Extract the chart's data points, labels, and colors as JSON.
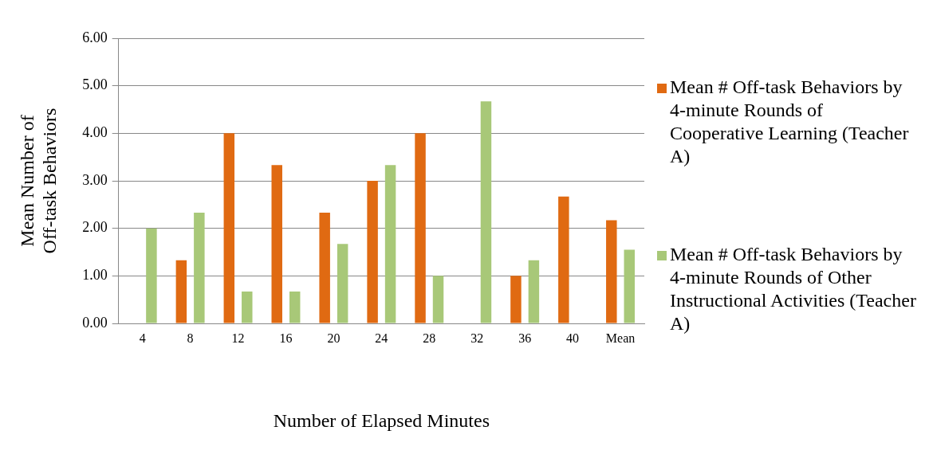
{
  "chart_data": {
    "type": "bar",
    "xlabel": "Number of Elapsed Minutes",
    "ylabel": "Mean Number of Off-task Behaviors",
    "categories": [
      "4",
      "8",
      "12",
      "16",
      "20",
      "24",
      "28",
      "32",
      "36",
      "40",
      "Mean"
    ],
    "series": [
      {
        "name": "Mean # Off-task Behaviors by 4-minute Rounds of Cooperative Learning (Teacher A)",
        "color": "#e06a12",
        "values": [
          0,
          1.33,
          4,
          3.33,
          2.33,
          3,
          4,
          0,
          1,
          2.67,
          2.17
        ]
      },
      {
        "name": "Mean # Off-task Behaviors by 4-minute Rounds of Other Instructional Activities (Teacher A)",
        "color": "#a8c878",
        "values": [
          2,
          2.33,
          0.67,
          0.67,
          1.67,
          3.33,
          1,
          4.67,
          1.33,
          0,
          1.55
        ]
      }
    ],
    "ylim": [
      0,
      6
    ],
    "yticks": [
      {
        "value": 0,
        "label": "0.00"
      },
      {
        "value": 1,
        "label": "1.00"
      },
      {
        "value": 2,
        "label": "2.00"
      },
      {
        "value": 3,
        "label": "3.00"
      },
      {
        "value": 4,
        "label": "4.00"
      },
      {
        "value": 5,
        "label": "5.00"
      },
      {
        "value": 6,
        "label": "6.00"
      }
    ],
    "grid": "y",
    "legend": "right"
  }
}
